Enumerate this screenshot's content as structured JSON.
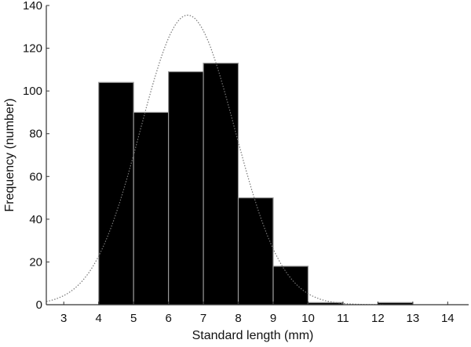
{
  "chart_data": {
    "type": "bar",
    "subtype": "histogram",
    "title": "",
    "xlabel": "Standard length (mm)",
    "ylabel": "Frequency (number)",
    "xlim": [
      2.5,
      14.6
    ],
    "ylim": [
      0,
      140
    ],
    "x_ticks": [
      3,
      4,
      5,
      6,
      7,
      8,
      9,
      10,
      11,
      12,
      13,
      14
    ],
    "y_ticks": [
      0,
      20,
      40,
      60,
      80,
      100,
      120,
      140
    ],
    "bins": [
      {
        "from": 4,
        "to": 5,
        "value": 104
      },
      {
        "from": 5,
        "to": 6,
        "value": 90
      },
      {
        "from": 6,
        "to": 7,
        "value": 109
      },
      {
        "from": 7,
        "to": 8,
        "value": 113
      },
      {
        "from": 8,
        "to": 9,
        "value": 50
      },
      {
        "from": 9,
        "to": 10,
        "value": 18
      },
      {
        "from": 10,
        "to": 11,
        "value": 1
      },
      {
        "from": 11,
        "to": 12,
        "value": 0
      },
      {
        "from": 12,
        "to": 13,
        "value": 1
      },
      {
        "from": 13,
        "to": 14,
        "value": 0
      }
    ],
    "categories": [
      "4-5",
      "5-6",
      "6-7",
      "7-8",
      "8-9",
      "9-10",
      "10-11",
      "11-12",
      "12-13",
      "13-14"
    ],
    "values": [
      104,
      90,
      109,
      113,
      50,
      18,
      1,
      0,
      1,
      0
    ],
    "fit_curve": {
      "type": "normal",
      "style": "dotted",
      "mean": 6.55,
      "peak": 135.5,
      "sd": 1.35
    },
    "grid": false,
    "legend": null
  },
  "colors": {
    "bar_fill": "#000000",
    "bar_edge": "#999999",
    "curve": "#777777",
    "axis": "#333333"
  }
}
